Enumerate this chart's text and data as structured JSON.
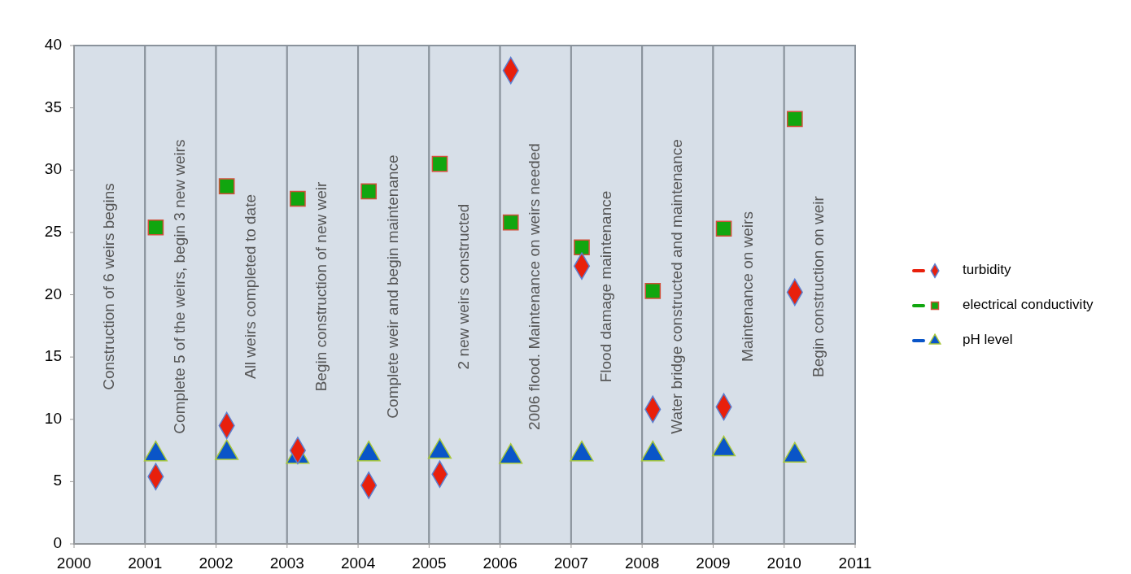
{
  "chart_data": {
    "type": "scatter",
    "x": [
      2001.15,
      2002.15,
      2003.15,
      2004.15,
      2005.15,
      2006.15,
      2007.15,
      2008.15,
      2009.15,
      2010.15
    ],
    "series": [
      {
        "name": "turbidity",
        "color": "#e8200c",
        "marker": "diamond",
        "values": [
          5.4,
          9.5,
          7.5,
          4.7,
          5.6,
          38.0,
          22.3,
          10.8,
          11.0,
          20.2
        ]
      },
      {
        "name": "electrical conductivity",
        "color": "#11a60f",
        "marker": "square",
        "values": [
          25.4,
          28.7,
          27.7,
          28.3,
          30.5,
          25.8,
          23.8,
          20.3,
          25.3,
          34.1
        ]
      },
      {
        "name": "pH level",
        "color": "#0a55c8",
        "marker": "triangle",
        "values": [
          7.2,
          7.3,
          7.0,
          7.2,
          7.4,
          7.0,
          7.2,
          7.2,
          7.6,
          7.1
        ]
      }
    ],
    "xlim": [
      2000,
      2011
    ],
    "xticks": [
      2000,
      2001,
      2002,
      2003,
      2004,
      2005,
      2006,
      2007,
      2008,
      2009,
      2010,
      2011
    ],
    "ylim": [
      0,
      40
    ],
    "yticks": [
      0,
      5,
      10,
      15,
      20,
      25,
      30,
      35,
      40
    ],
    "bands": [
      {
        "axis": "x",
        "from": 2000,
        "to": 2001,
        "label": "Construction of 6 weirs begins",
        "color": "#d7dfe8"
      },
      {
        "axis": "x",
        "from": 2001,
        "to": 2002,
        "label": "Complete 5 of the weirs, begin 3 new weirs",
        "color": "#d7dfe8"
      },
      {
        "axis": "x",
        "from": 2002,
        "to": 2003,
        "label": "All weirs completed to date",
        "color": "#d7dfe8"
      },
      {
        "axis": "x",
        "from": 2003,
        "to": 2004,
        "label": "Begin construction of new weir",
        "color": "#d7dfe8"
      },
      {
        "axis": "x",
        "from": 2004,
        "to": 2005,
        "label": "Complete weir and begin maintenance",
        "color": "#d7dfe8"
      },
      {
        "axis": "x",
        "from": 2005,
        "to": 2006,
        "label": "2 new weirs constructed",
        "color": "#d7dfe8"
      },
      {
        "axis": "x",
        "from": 2006,
        "to": 2007,
        "label": "2006 flood. Maintenance on weirs needed",
        "color": "#d7dfe8"
      },
      {
        "axis": "x",
        "from": 2007,
        "to": 2008,
        "label": "Flood damage maintenance",
        "color": "#d7dfe8"
      },
      {
        "axis": "x",
        "from": 2008,
        "to": 2009,
        "label": "Water bridge constructed and maintenance",
        "color": "#d7dfe8"
      },
      {
        "axis": "x",
        "from": 2009,
        "to": 2010,
        "label": "Maintenance on weirs",
        "color": "#d7dfe8"
      },
      {
        "axis": "x",
        "from": 2010,
        "to": 2011,
        "label": "Begin construction on weir",
        "color": "#d7dfe8"
      }
    ],
    "legend": "right"
  }
}
